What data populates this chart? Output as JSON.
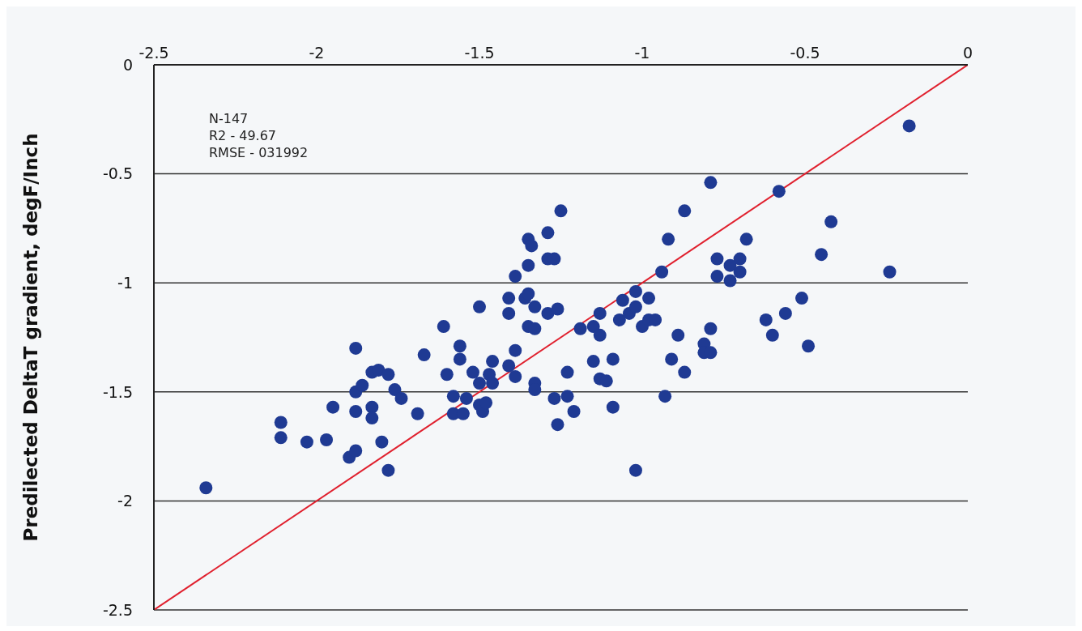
{
  "chart_data": {
    "type": "scatter",
    "ylabel": "Predilected DeltaT gradient, degF/Inch",
    "annotations": [
      "N-147",
      "R2 - 49.67",
      "RMSE - 031992"
    ],
    "xlim": [
      -2.5,
      0
    ],
    "xticks": [
      -2.5,
      -2,
      -1.5,
      -1,
      -0.5,
      0
    ],
    "ylim": [
      -2.5,
      0
    ],
    "yticks": [
      -2.5,
      -2,
      -1.5,
      -1,
      -0.5,
      0
    ],
    "grid": "y",
    "legend": false,
    "series": [
      {
        "marker": "circle",
        "color": "#1f3a93",
        "x": [
          -2.34,
          -2.11,
          -2.11,
          -2.03,
          -1.97,
          -1.95,
          -1.9,
          -1.88,
          -1.88,
          -1.88,
          -1.88,
          -1.86,
          -1.83,
          -1.81,
          -1.78,
          -1.83,
          -1.83,
          -1.8,
          -1.78,
          -1.76,
          -1.74,
          -1.69,
          -1.67,
          -1.61,
          -1.6,
          -1.56,
          -1.56,
          -1.58,
          -1.54,
          -1.58,
          -1.55,
          -1.52,
          -1.5,
          -1.5,
          -1.49,
          -1.5,
          -1.48,
          -1.47,
          -1.46,
          -1.46,
          -1.41,
          -1.41,
          -1.41,
          -1.39,
          -1.39,
          -1.39,
          -1.36,
          -1.35,
          -1.35,
          -1.35,
          -1.34,
          -1.35,
          -1.33,
          -1.33,
          -1.33,
          -1.33,
          -1.29,
          -1.29,
          -1.27,
          -1.29,
          -1.26,
          -1.25,
          -1.27,
          -1.26,
          -1.23,
          -1.23,
          -1.21,
          -1.19,
          -1.15,
          -1.13,
          -1.13,
          -1.15,
          -1.13,
          -1.11,
          -1.09,
          -1.09,
          -1.07,
          -1.06,
          -1.04,
          -1.02,
          -1.02,
          -1.02,
          -1.0,
          -0.98,
          -0.98,
          -0.96,
          -0.94,
          -0.93,
          -0.92,
          -0.91,
          -0.89,
          -0.87,
          -0.87,
          -0.81,
          -0.81,
          -0.79,
          -0.79,
          -0.79,
          -0.77,
          -0.77,
          -0.73,
          -0.73,
          -0.7,
          -0.7,
          -0.68,
          -0.62,
          -0.6,
          -0.58,
          -0.56,
          -0.51,
          -0.49,
          -0.45,
          -0.42,
          -0.24,
          -0.18
        ],
        "values": [
          -1.94,
          -1.64,
          -1.71,
          -1.73,
          -1.72,
          -1.57,
          -1.8,
          -1.77,
          -1.59,
          -1.5,
          -1.3,
          -1.47,
          -1.41,
          -1.4,
          -1.42,
          -1.57,
          -1.62,
          -1.73,
          -1.86,
          -1.49,
          -1.53,
          -1.6,
          -1.33,
          -1.2,
          -1.42,
          -1.29,
          -1.35,
          -1.52,
          -1.53,
          -1.6,
          -1.6,
          -1.41,
          -1.46,
          -1.11,
          -1.59,
          -1.56,
          -1.55,
          -1.42,
          -1.46,
          -1.36,
          -1.38,
          -1.07,
          -1.14,
          -1.31,
          -1.43,
          -0.97,
          -1.07,
          -1.05,
          -0.92,
          -0.8,
          -0.83,
          -1.2,
          -1.21,
          -1.11,
          -1.46,
          -1.49,
          -0.77,
          -0.89,
          -0.89,
          -1.14,
          -1.12,
          -0.67,
          -1.53,
          -1.65,
          -1.52,
          -1.41,
          -1.59,
          -1.21,
          -1.2,
          -1.24,
          -1.14,
          -1.36,
          -1.44,
          -1.45,
          -1.35,
          -1.57,
          -1.17,
          -1.08,
          -1.14,
          -1.04,
          -1.11,
          -1.86,
          -1.2,
          -1.07,
          -1.17,
          -1.17,
          -0.95,
          -1.52,
          -0.8,
          -1.35,
          -1.24,
          -1.41,
          -0.67,
          -1.28,
          -1.32,
          -1.32,
          -1.21,
          -0.54,
          -0.97,
          -0.89,
          -0.92,
          -0.99,
          -0.89,
          -0.95,
          -0.8,
          -1.17,
          -1.24,
          -0.58,
          -1.14,
          -1.07,
          -1.29,
          -0.87,
          -0.72,
          -0.95,
          -0.28
        ]
      },
      {
        "type": "line",
        "marker": "none",
        "color": "#e0202e",
        "x": [
          -2.5,
          0
        ],
        "values": [
          -2.5,
          0
        ]
      }
    ]
  }
}
